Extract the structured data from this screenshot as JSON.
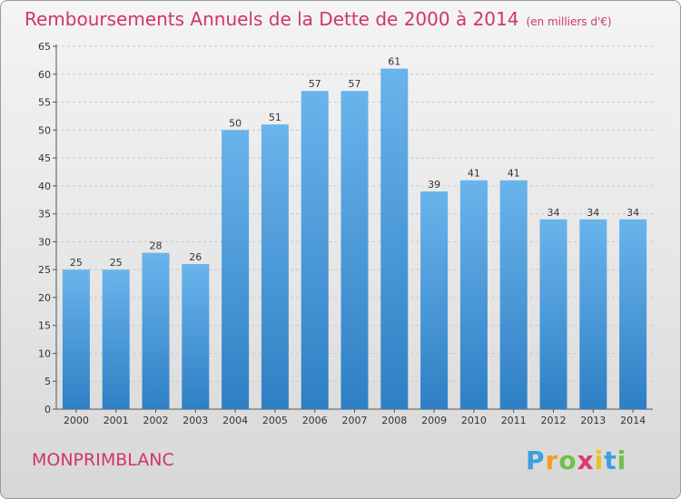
{
  "header": {
    "title": "Remboursements Annuels de la Dette de 2000 à 2014",
    "unit": "(en milliers d'€)"
  },
  "footer": {
    "commune": "MONPRIMBLANC",
    "brand": "Proxiti"
  },
  "colors": {
    "accent": "#d0356a",
    "bar_light": "#6ab4ec",
    "bar_dark": "#2e7fc4"
  },
  "chart_data": {
    "type": "bar",
    "title": "Remboursements Annuels de la Dette de 2000 à 2014",
    "subtitle": "(en milliers d'€)",
    "xlabel": "",
    "ylabel": "",
    "categories": [
      "2000",
      "2001",
      "2002",
      "2003",
      "2004",
      "2005",
      "2006",
      "2007",
      "2008",
      "2009",
      "2010",
      "2011",
      "2012",
      "2013",
      "2014"
    ],
    "values": [
      25,
      25,
      28,
      26,
      50,
      51,
      57,
      57,
      61,
      39,
      41,
      41,
      34,
      34,
      34
    ],
    "ylim": [
      0,
      65
    ],
    "yticks": [
      0,
      5,
      10,
      15,
      20,
      25,
      30,
      35,
      40,
      45,
      50,
      55,
      60,
      65
    ],
    "grid": true,
    "data_labels": true
  }
}
